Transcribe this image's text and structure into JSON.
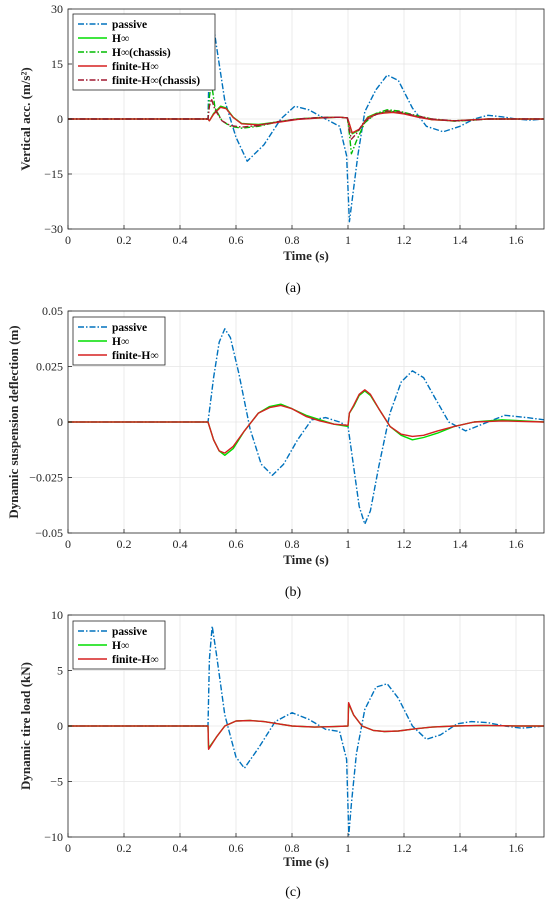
{
  "chart_data": [
    {
      "type": "line",
      "panel_label": "(a)",
      "xlabel": "Time (s)",
      "ylabel": "Vertical acc. (m/s²)",
      "xlim": [
        0,
        1.7
      ],
      "ylim": [
        -30,
        30
      ],
      "x_ticks": [
        0,
        0.2,
        0.4,
        0.6,
        0.8,
        1,
        1.2,
        1.4,
        1.6
      ],
      "x_tick_labels": [
        "0",
        "0.2",
        "0.4",
        "0.6",
        "0.8",
        "1",
        "1.2",
        "1.4",
        "1.6"
      ],
      "y_ticks": [
        -30,
        -15,
        0,
        15,
        30
      ],
      "y_tick_labels": [
        "−30",
        "−15",
        "0",
        "15",
        "30"
      ],
      "grid": true,
      "legend_position": "top-left",
      "series": [
        {
          "name": "passive",
          "color": "#0072BD",
          "style": "dashdot",
          "x": [
            0,
            0.5,
            0.505,
            0.515,
            0.53,
            0.56,
            0.6,
            0.64,
            0.7,
            0.76,
            0.81,
            0.86,
            0.92,
            0.97,
            0.995,
            1.005,
            1.015,
            1.035,
            1.06,
            1.1,
            1.14,
            1.18,
            1.23,
            1.28,
            1.34,
            1.4,
            1.45,
            1.5,
            1.55,
            1.6,
            1.65,
            1.7
          ],
          "y": [
            0,
            0,
            18,
            28,
            20,
            5,
            -5,
            -11.5,
            -7,
            0,
            3.5,
            2.5,
            0,
            -2,
            -10,
            -28,
            -22,
            -10,
            2,
            8,
            12,
            10.5,
            3,
            -2,
            -3.5,
            -2,
            0,
            1,
            0.6,
            0,
            -0.3,
            0
          ]
        },
        {
          "name": "H∞",
          "color": "#00DD00",
          "style": "solid",
          "x": [
            0,
            0.5,
            0.505,
            0.52,
            0.545,
            0.565,
            0.59,
            0.62,
            0.68,
            0.75,
            0.82,
            0.9,
            0.97,
            0.998,
            1.005,
            1.015,
            1.04,
            1.07,
            1.1,
            1.13,
            1.16,
            1.2,
            1.25,
            1.3,
            1.38,
            1.45,
            1.5,
            1.7
          ],
          "y": [
            0,
            0,
            -0.5,
            1.5,
            3.5,
            3,
            0.5,
            -1.2,
            -1.5,
            -0.8,
            0,
            0.3,
            0.5,
            0.3,
            -1.5,
            -4,
            -3,
            0.5,
            1.5,
            1.8,
            2,
            1.5,
            0.6,
            -0.2,
            -0.5,
            -0.2,
            0,
            0
          ]
        },
        {
          "name": "H∞(chassis)",
          "color": "#00BB00",
          "style": "dashdot",
          "x": [
            0,
            0.5,
            0.505,
            0.512,
            0.525,
            0.55,
            0.58,
            0.62,
            0.68,
            0.75,
            0.82,
            0.9,
            0.97,
            0.998,
            1.005,
            1.012,
            1.03,
            1.06,
            1.1,
            1.14,
            1.18,
            1.23,
            1.3,
            1.38,
            1.45,
            1.5,
            1.7
          ],
          "y": [
            0,
            0,
            6,
            10,
            3,
            -0.5,
            -2,
            -2.5,
            -2,
            -0.8,
            0,
            0.4,
            0.5,
            0.3,
            -4,
            -9.5,
            -6,
            -1,
            1.5,
            2.5,
            2.2,
            1.2,
            0,
            -0.6,
            -0.3,
            0,
            0
          ]
        },
        {
          "name": "finite-H∞",
          "color": "#D62020",
          "style": "solid",
          "x": [
            0,
            0.5,
            0.505,
            0.52,
            0.545,
            0.565,
            0.59,
            0.62,
            0.68,
            0.75,
            0.82,
            0.9,
            0.97,
            0.998,
            1.005,
            1.015,
            1.04,
            1.07,
            1.1,
            1.13,
            1.16,
            1.2,
            1.25,
            1.3,
            1.38,
            1.45,
            1.5,
            1.7
          ],
          "y": [
            0,
            0,
            -0.5,
            1.3,
            3.2,
            2.8,
            0.4,
            -1.3,
            -1.6,
            -0.9,
            -0.1,
            0.3,
            0.5,
            0.3,
            -1.3,
            -3.8,
            -2.8,
            0.3,
            1.3,
            1.6,
            1.8,
            1.4,
            0.5,
            -0.2,
            -0.5,
            -0.2,
            0,
            0
          ]
        },
        {
          "name": "finite-H∞(chassis)",
          "color": "#A01830",
          "style": "dashdot",
          "x": [
            0,
            0.5,
            0.505,
            0.512,
            0.525,
            0.55,
            0.58,
            0.62,
            0.68,
            0.75,
            0.82,
            0.9,
            0.97,
            0.998,
            1.005,
            1.012,
            1.03,
            1.06,
            1.1,
            1.14,
            1.18,
            1.23,
            1.3,
            1.38,
            1.45,
            1.5,
            1.7
          ],
          "y": [
            0,
            0,
            3.5,
            5.5,
            2.5,
            -0.5,
            -1.8,
            -2.2,
            -1.8,
            -0.7,
            0,
            0.4,
            0.5,
            0.3,
            -3,
            -5.5,
            -4,
            -0.5,
            1.2,
            2.2,
            2,
            1.1,
            0,
            -0.5,
            -0.3,
            0,
            0
          ]
        }
      ]
    },
    {
      "type": "line",
      "panel_label": "(b)",
      "xlabel": "Time (s)",
      "ylabel": "Dynamic suspension deflection (m)",
      "xlim": [
        0,
        1.7
      ],
      "ylim": [
        -0.05,
        0.05
      ],
      "x_ticks": [
        0,
        0.2,
        0.4,
        0.6,
        0.8,
        1,
        1.2,
        1.4,
        1.6
      ],
      "x_tick_labels": [
        "0",
        "0.2",
        "0.4",
        "0.6",
        "0.8",
        "1",
        "1.2",
        "1.4",
        "1.6"
      ],
      "y_ticks": [
        -0.05,
        -0.025,
        0,
        0.025,
        0.05
      ],
      "y_tick_labels": [
        "−0.05",
        "−0.025",
        "0",
        "0.025",
        "0.05"
      ],
      "grid": true,
      "legend_position": "top-left",
      "series": [
        {
          "name": "passive",
          "color": "#0072BD",
          "style": "dashdot",
          "x": [
            0,
            0.5,
            0.52,
            0.54,
            0.56,
            0.58,
            0.61,
            0.65,
            0.69,
            0.73,
            0.77,
            0.82,
            0.87,
            0.92,
            0.97,
            1.0,
            1.02,
            1.04,
            1.06,
            1.08,
            1.11,
            1.15,
            1.19,
            1.23,
            1.27,
            1.31,
            1.36,
            1.42,
            1.48,
            1.56,
            1.64,
            1.7
          ],
          "y": [
            0,
            0,
            0.02,
            0.036,
            0.042,
            0.038,
            0.022,
            -0.003,
            -0.019,
            -0.024,
            -0.019,
            -0.008,
            0.001,
            0.002,
            0,
            -0.002,
            -0.02,
            -0.038,
            -0.046,
            -0.04,
            -0.02,
            0.004,
            0.018,
            0.023,
            0.02,
            0.011,
            0,
            -0.004,
            -0.001,
            0.003,
            0.002,
            0.001
          ]
        },
        {
          "name": "H∞",
          "color": "#00DD00",
          "style": "solid",
          "x": [
            0,
            0.5,
            0.52,
            0.54,
            0.56,
            0.59,
            0.63,
            0.68,
            0.72,
            0.76,
            0.8,
            0.85,
            0.9,
            0.95,
            1.0,
            1.005,
            1.02,
            1.04,
            1.06,
            1.08,
            1.11,
            1.15,
            1.19,
            1.23,
            1.27,
            1.32,
            1.38,
            1.45,
            1.55,
            1.7
          ],
          "y": [
            0,
            0,
            -0.008,
            -0.013,
            -0.015,
            -0.012,
            -0.004,
            0.004,
            0.007,
            0.008,
            0.006,
            0.003,
            0.001,
            -0.001,
            -0.002,
            0.004,
            0.007,
            0.012,
            0.014,
            0.012,
            0.006,
            -0.002,
            -0.006,
            -0.008,
            -0.007,
            -0.005,
            -0.002,
            0,
            0.001,
            0
          ]
        },
        {
          "name": "finite-H∞",
          "color": "#D62020",
          "style": "solid",
          "x": [
            0,
            0.5,
            0.52,
            0.54,
            0.56,
            0.59,
            0.63,
            0.68,
            0.72,
            0.76,
            0.8,
            0.85,
            0.9,
            0.95,
            1.0,
            1.005,
            1.02,
            1.04,
            1.06,
            1.08,
            1.11,
            1.15,
            1.19,
            1.23,
            1.27,
            1.32,
            1.38,
            1.45,
            1.55,
            1.7
          ],
          "y": [
            0,
            0,
            -0.008,
            -0.013,
            -0.014,
            -0.011,
            -0.004,
            0.004,
            0.0065,
            0.0075,
            0.006,
            0.0025,
            0.0005,
            -0.001,
            -0.0015,
            0.004,
            0.0075,
            0.0125,
            0.0145,
            0.0125,
            0.006,
            -0.002,
            -0.0055,
            -0.0065,
            -0.006,
            -0.004,
            -0.002,
            0,
            0.0005,
            0
          ]
        }
      ]
    },
    {
      "type": "line",
      "panel_label": "(c)",
      "xlabel": "Time (s)",
      "ylabel": "Dynamic tire load (kN)",
      "xlim": [
        0,
        1.7
      ],
      "ylim": [
        -10,
        10
      ],
      "x_ticks": [
        0,
        0.2,
        0.4,
        0.6,
        0.8,
        1,
        1.2,
        1.4,
        1.6
      ],
      "x_tick_labels": [
        "0",
        "0.2",
        "0.4",
        "0.6",
        "0.8",
        "1",
        "1.2",
        "1.4",
        "1.6"
      ],
      "y_ticks": [
        -10,
        -5,
        0,
        5,
        10
      ],
      "y_tick_labels": [
        "−10",
        "−5",
        "0",
        "5",
        "10"
      ],
      "grid": true,
      "legend_position": "top-left",
      "series": [
        {
          "name": "passive",
          "color": "#0072BD",
          "style": "dashdot",
          "x": [
            0,
            0.5,
            0.505,
            0.515,
            0.53,
            0.56,
            0.6,
            0.63,
            0.68,
            0.74,
            0.8,
            0.86,
            0.92,
            0.97,
            0.995,
            1.003,
            1.012,
            1.03,
            1.06,
            1.1,
            1.14,
            1.18,
            1.23,
            1.28,
            1.33,
            1.39,
            1.44,
            1.5,
            1.56,
            1.62,
            1.7
          ],
          "y": [
            0,
            0,
            6,
            9,
            6.5,
            1,
            -2.8,
            -3.8,
            -2,
            0.4,
            1.2,
            0.6,
            -0.3,
            -0.5,
            -3,
            -9.8,
            -7,
            -2.5,
            1.5,
            3.5,
            3.8,
            2.5,
            0,
            -1.2,
            -0.8,
            0.2,
            0.4,
            0.3,
            0,
            -0.2,
            0
          ]
        },
        {
          "name": "H∞",
          "color": "#00DD00",
          "style": "solid",
          "x": [
            0,
            0.5,
            0.502,
            0.53,
            0.56,
            0.6,
            0.65,
            0.7,
            0.75,
            0.8,
            0.88,
            0.95,
            1.0,
            1.002,
            1.02,
            1.05,
            1.09,
            1.13,
            1.18,
            1.24,
            1.3,
            1.38,
            1.48,
            1.6,
            1.7
          ],
          "y": [
            0,
            0,
            -2,
            -1,
            0,
            0.45,
            0.5,
            0.4,
            0.2,
            0,
            -0.1,
            -0.05,
            0,
            2,
            1,
            0,
            -0.4,
            -0.5,
            -0.45,
            -0.25,
            -0.1,
            0,
            0.05,
            0,
            0
          ]
        },
        {
          "name": "finite-H∞",
          "color": "#D62020",
          "style": "solid",
          "x": [
            0,
            0.5,
            0.502,
            0.53,
            0.56,
            0.6,
            0.65,
            0.7,
            0.75,
            0.8,
            0.88,
            0.95,
            1.0,
            1.002,
            1.02,
            1.05,
            1.09,
            1.13,
            1.18,
            1.24,
            1.3,
            1.38,
            1.48,
            1.6,
            1.7
          ],
          "y": [
            0,
            0,
            -2.1,
            -1,
            0,
            0.45,
            0.5,
            0.4,
            0.2,
            0,
            -0.1,
            -0.05,
            0,
            2.1,
            1,
            0,
            -0.4,
            -0.5,
            -0.45,
            -0.25,
            -0.1,
            0,
            0.05,
            0,
            0
          ]
        }
      ]
    }
  ]
}
